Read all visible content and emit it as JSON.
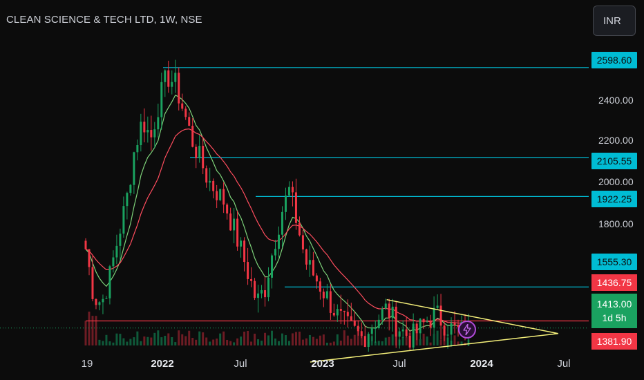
{
  "title": "CLEAN SCIENCE & TECH LTD, 1W, NSE",
  "currency_button": "INR",
  "colors": {
    "up": "#1aa260",
    "down": "#f23645",
    "cyan": "#00bcd4",
    "red_line": "#f23645",
    "yellow": "#f5f07a",
    "ema_green": "#7ed37a",
    "ema_red": "#ff4d5e"
  },
  "price_tags": [
    {
      "label": "2598.60",
      "style": "cyan",
      "price": 2598.6
    },
    {
      "label": "2105.55",
      "style": "cyan",
      "price": 2105.55
    },
    {
      "label": "1922.25",
      "style": "cyan",
      "price": 1922.25
    },
    {
      "label": "1555.30",
      "style": "cyan",
      "price": 1555.3
    },
    {
      "label": "1436.75",
      "style": "red",
      "price": 1436.75
    },
    {
      "label": "1381.90",
      "style": "red",
      "price": 1381.9
    }
  ],
  "current_price": {
    "label": "1413.00",
    "countdown": "1d 5h"
  },
  "icons": {
    "lightning": "lightning-icon"
  },
  "chart_data": {
    "type": "candlestick",
    "title": "CLEAN SCIENCE & TECH LTD, 1W, NSE",
    "y_tick_labels": [
      "2400.00",
      "2200.00",
      "2000.00",
      "1800.00"
    ],
    "y_ticks": [
      2400,
      2200,
      2000,
      1800
    ],
    "x_tick_labels": [
      "19",
      "2022",
      "Jul",
      "2023",
      "Jul",
      "2024",
      "Jul"
    ],
    "x_tick_bold": [
      false,
      true,
      false,
      true,
      false,
      true,
      false
    ],
    "x_ticks_date": [
      "2021-09-01",
      "2022-01-01",
      "2022-07-01",
      "2023-01-01",
      "2023-07-01",
      "2024-01-01",
      "2024-07-01"
    ],
    "series_sample_closes": [
      1700,
      1520,
      1500,
      1600,
      1750,
      1900,
      2150,
      2300,
      2200,
      2400,
      2550,
      2500,
      2350,
      2200,
      2100,
      2000,
      1950,
      1900,
      1800,
      1700,
      1600,
      1500,
      1550,
      1700,
      1850,
      1950,
      1800,
      1650,
      1600,
      1550,
      1500,
      1450,
      1420,
      1400,
      1380,
      1420,
      1450,
      1480,
      1430,
      1400,
      1380,
      1410,
      1440,
      1460,
      1430,
      1410,
      1400,
      1413
    ],
    "horizontal_levels": [
      2598.6,
      2105.55,
      1922.25,
      1555.3,
      1436.75
    ],
    "current_price": 1413.0,
    "triangle": {
      "upper_line": [
        [
          "2023-05-29",
          1510
        ],
        [
          "2024-06-24",
          1395
        ]
      ],
      "lower_line": [
        [
          "2022-12-05",
          1305
        ],
        [
          "2024-06-24",
          1395
        ]
      ]
    },
    "grid": false,
    "log_scale": true
  }
}
